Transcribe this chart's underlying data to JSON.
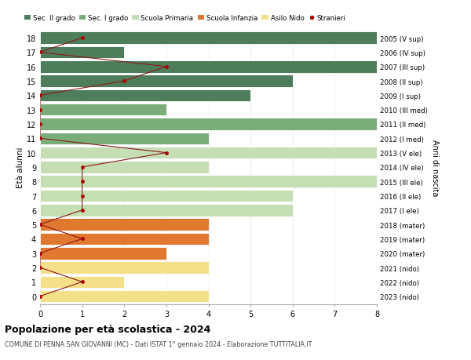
{
  "ages": [
    18,
    17,
    16,
    15,
    14,
    13,
    12,
    11,
    10,
    9,
    8,
    7,
    6,
    5,
    4,
    3,
    2,
    1,
    0
  ],
  "years": [
    "2005 (V sup)",
    "2006 (IV sup)",
    "2007 (III sup)",
    "2008 (II sup)",
    "2009 (I sup)",
    "2010 (III med)",
    "2011 (II med)",
    "2012 (I med)",
    "2013 (V ele)",
    "2014 (IV ele)",
    "2015 (III ele)",
    "2016 (II ele)",
    "2017 (I ele)",
    "2018 (mater)",
    "2019 (mater)",
    "2020 (mater)",
    "2021 (nido)",
    "2022 (nido)",
    "2023 (nido)"
  ],
  "bar_values": [
    8,
    2,
    8,
    6,
    5,
    3,
    8,
    4,
    8,
    4,
    8,
    6,
    6,
    4,
    4,
    3,
    4,
    2,
    4
  ],
  "bar_colors": [
    "#4e7d5b",
    "#4e7d5b",
    "#4e7d5b",
    "#4e7d5b",
    "#4e7d5b",
    "#7aad7a",
    "#7aad7a",
    "#7aad7a",
    "#c5deb4",
    "#c5deb4",
    "#c5deb4",
    "#c5deb4",
    "#c5deb4",
    "#e07830",
    "#e07830",
    "#e07830",
    "#f5e08a",
    "#f5e08a",
    "#f5e08a"
  ],
  "stranieri_x": [
    1,
    0,
    3,
    2,
    0,
    0,
    0,
    0,
    3,
    1,
    1,
    1,
    1,
    0,
    1,
    0,
    0,
    1,
    0
  ],
  "stranieri_ages": [
    18,
    17,
    16,
    15,
    14,
    13,
    12,
    11,
    10,
    9,
    8,
    7,
    6,
    5,
    4,
    3,
    2,
    1,
    0
  ],
  "legend_labels": [
    "Sec. II grado",
    "Sec. I grado",
    "Scuola Primaria",
    "Scuola Infanzia",
    "Asilo Nido",
    "Stranieri"
  ],
  "legend_colors": [
    "#4e7d5b",
    "#7aad7a",
    "#c5deb4",
    "#e07830",
    "#f5e08a",
    "#aa0000"
  ],
  "ylabel": "Età alunni",
  "right_label": "Anni di nascita",
  "title": "Popolazione per età scolastica - 2024",
  "subtitle": "COMUNE DI PENNA SAN GIOVANNI (MC) - Dati ISTAT 1° gennaio 2024 - Elaborazione TUTTITALIA.IT",
  "xlim": [
    0,
    8
  ],
  "background_color": "#ffffff",
  "bar_height": 0.85,
  "grid_color": "#dddddd"
}
